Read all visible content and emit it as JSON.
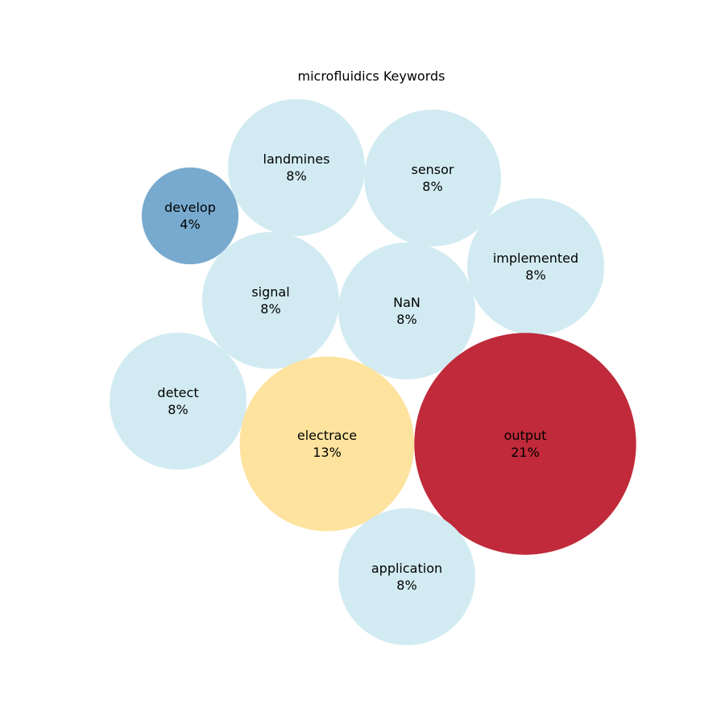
{
  "chart_data": {
    "type": "bubble",
    "title": "microfluidics Keywords",
    "bubbles": [
      {
        "label": "landmines",
        "percent": "8%",
        "value": 8,
        "color": "#d2ebf2"
      },
      {
        "label": "sensor",
        "percent": "8%",
        "value": 8,
        "color": "#d2ebf2"
      },
      {
        "label": "develop",
        "percent": "4%",
        "value": 4,
        "color": "#78aacf"
      },
      {
        "label": "implemented",
        "percent": "8%",
        "value": 8,
        "color": "#d2ebf2"
      },
      {
        "label": "signal",
        "percent": "8%",
        "value": 8,
        "color": "#d2ebf2"
      },
      {
        "label": "NaN",
        "percent": "8%",
        "value": 8,
        "color": "#d2ebf2"
      },
      {
        "label": "detect",
        "percent": "8%",
        "value": 8,
        "color": "#d2ebf2"
      },
      {
        "label": "electrace",
        "percent": "13%",
        "value": 13,
        "color": "#fee39f"
      },
      {
        "label": "output",
        "percent": "21%",
        "value": 21,
        "color": "#c02a3a"
      },
      {
        "label": "application",
        "percent": "8%",
        "value": 8,
        "color": "#d2ebf2"
      }
    ]
  }
}
